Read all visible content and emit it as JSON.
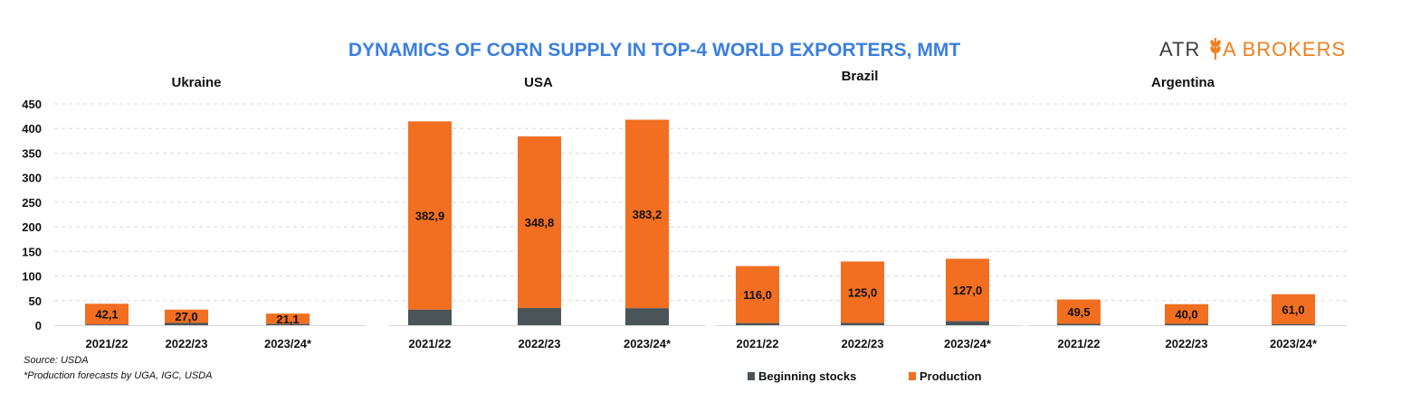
{
  "chart_data": {
    "type": "bar",
    "stacked": true,
    "title": "DYNAMICS OF CORN SUPPLY IN TOP-4 WORLD EXPORTERS, MMT",
    "logo": {
      "part1": "ATR",
      "part2": "A BROKERS",
      "wheat_letter": "I"
    },
    "ylim": [
      0,
      450
    ],
    "yticks": [
      0,
      50,
      100,
      150,
      200,
      250,
      300,
      350,
      400,
      450
    ],
    "categories": [
      "2021/22",
      "2022/23",
      "2023/24*"
    ],
    "colors": {
      "beginning_stocks": "#4a5459",
      "production": "#f26f21",
      "title": "#3b7fe0",
      "logo_dark": "#3c3c3c",
      "logo_accent": "#f07f1e"
    },
    "legend": [
      "Beginning stocks",
      "Production"
    ],
    "panels": [
      {
        "country": "Ukraine",
        "beginning_stocks": [
          1.5,
          4.7,
          2.5
        ],
        "production": [
          42.1,
          27.0,
          21.1
        ],
        "labels": [
          "42,1",
          "27,0",
          "21,1"
        ]
      },
      {
        "country": "USA",
        "beginning_stocks": [
          31.6,
          35.0,
          34.6
        ],
        "production": [
          382.9,
          348.8,
          383.2
        ],
        "labels": [
          "382,9",
          "348,8",
          "383,2"
        ]
      },
      {
        "country": "Brazil",
        "beginning_stocks": [
          4.2,
          4.5,
          8.1
        ],
        "production": [
          116.0,
          125.0,
          127.0
        ],
        "labels": [
          "116,0",
          "125,0",
          "127,0"
        ]
      },
      {
        "country": "Argentina",
        "beginning_stocks": [
          2.8,
          2.8,
          2.0
        ],
        "production": [
          49.5,
          40.0,
          61.0
        ],
        "labels": [
          "49,5",
          "40,0",
          "61,0"
        ]
      }
    ],
    "notes": [
      "Source: USDA",
      "*Production forecasts  by UGA, IGC, USDA"
    ]
  }
}
